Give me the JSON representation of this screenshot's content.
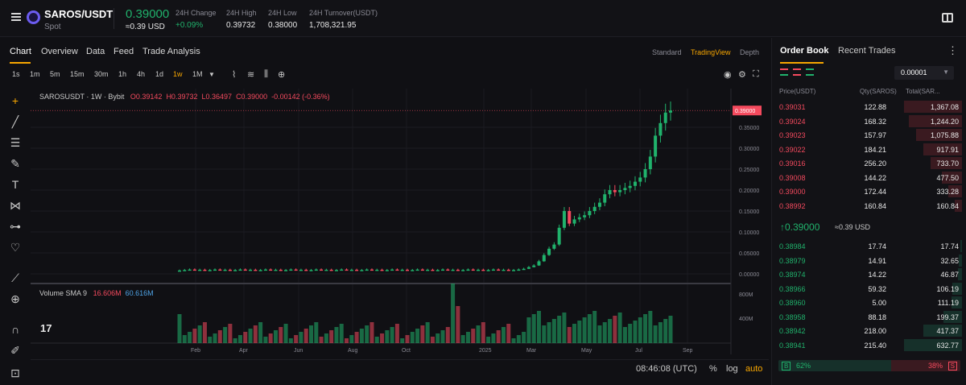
{
  "header": {
    "symbol": "SAROS/USDT",
    "market": "Spot",
    "price": "0.39000",
    "price_usd": "≈0.39 USD",
    "stats": [
      {
        "label": "24H Change",
        "value": "+0.09%",
        "color": "#20b26c"
      },
      {
        "label": "24H High",
        "value": "0.39732",
        "color": "#e8e8e8"
      },
      {
        "label": "24H Low",
        "value": "0.38000",
        "color": "#e8e8e8"
      },
      {
        "label": "24H Turnover(USDT)",
        "value": "1,708,321.95",
        "color": "#e8e8e8"
      }
    ]
  },
  "tabs": [
    "Chart",
    "Overview",
    "Data",
    "Feed",
    "Trade Analysis"
  ],
  "views": [
    "Standard",
    "TradingView",
    "Depth"
  ],
  "timeframes": [
    "1s",
    "1m",
    "5m",
    "15m",
    "30m",
    "1h",
    "4h",
    "1d",
    "1w",
    "1M"
  ],
  "active_timeframe": "1w",
  "legend": {
    "pair": "SAROSUSDT · 1W · Bybit",
    "open": "O0.39142",
    "high": "H0.39732",
    "low": "L0.36497",
    "close": "C0.39000",
    "change": "-0.00142 (-0.36%)"
  },
  "volume_legend": {
    "label": "Volume SMA 9",
    "v1": "16.606M",
    "v2": "60.616M"
  },
  "tv_logo": "17",
  "bottom": {
    "clock": "08:46:08 (UTC)",
    "percent": "%",
    "log": "log",
    "auto": "auto"
  },
  "chart_data": {
    "type": "candlestick",
    "price_axis": [
      "0.39000",
      "0.35000",
      "0.30000",
      "0.25000",
      "0.20000",
      "0.15000",
      "0.10000",
      "0.05000",
      "0.00000"
    ],
    "volume_axis": [
      "800M",
      "400M"
    ],
    "x_ticks": [
      "Feb",
      "Apr",
      "Jun",
      "Aug",
      "Oct",
      "2025",
      "Mar",
      "May",
      "Jul",
      "Sep"
    ],
    "last_price": "0.39000",
    "ylim": [
      0,
      0.4
    ]
  },
  "orderbook": {
    "tabs": [
      "Order Book",
      "Recent Trades"
    ],
    "precision": "0.00001",
    "headers": {
      "price": "Price(USDT)",
      "qty": "Qty(SAROS)",
      "total": "Total(SAR..."
    },
    "asks": [
      {
        "price": "0.39031",
        "qty": "122.88",
        "total": "1,367.08",
        "depth": 1.0
      },
      {
        "price": "0.39024",
        "qty": "168.32",
        "total": "1,244.20",
        "depth": 0.91
      },
      {
        "price": "0.39023",
        "qty": "157.97",
        "total": "1,075.88",
        "depth": 0.79
      },
      {
        "price": "0.39022",
        "qty": "184.21",
        "total": "917.91",
        "depth": 0.67
      },
      {
        "price": "0.39016",
        "qty": "256.20",
        "total": "733.70",
        "depth": 0.54
      },
      {
        "price": "0.39008",
        "qty": "144.22",
        "total": "477.50",
        "depth": 0.35
      },
      {
        "price": "0.39000",
        "qty": "172.44",
        "total": "333.28",
        "depth": 0.24
      },
      {
        "price": "0.38992",
        "qty": "160.84",
        "total": "160.84",
        "depth": 0.12
      }
    ],
    "mid_price": "↑0.39000",
    "mid_usd": "≈0.39 USD",
    "bids": [
      {
        "price": "0.38984",
        "qty": "17.74",
        "total": "17.74",
        "depth": 0.03
      },
      {
        "price": "0.38979",
        "qty": "14.91",
        "total": "32.65",
        "depth": 0.05
      },
      {
        "price": "0.38974",
        "qty": "14.22",
        "total": "46.87",
        "depth": 0.07
      },
      {
        "price": "0.38966",
        "qty": "59.32",
        "total": "106.19",
        "depth": 0.17
      },
      {
        "price": "0.38960",
        "qty": "5.00",
        "total": "111.19",
        "depth": 0.18
      },
      {
        "price": "0.38958",
        "qty": "88.18",
        "total": "199.37",
        "depth": 0.32
      },
      {
        "price": "0.38942",
        "qty": "218.00",
        "total": "417.37",
        "depth": 0.66
      },
      {
        "price": "0.38941",
        "qty": "215.40",
        "total": "632.77",
        "depth": 1.0
      }
    ],
    "buy_pct": "62%",
    "sell_pct": "38%",
    "buy_ratio": 0.62,
    "b_label": "B",
    "s_label": "S"
  }
}
